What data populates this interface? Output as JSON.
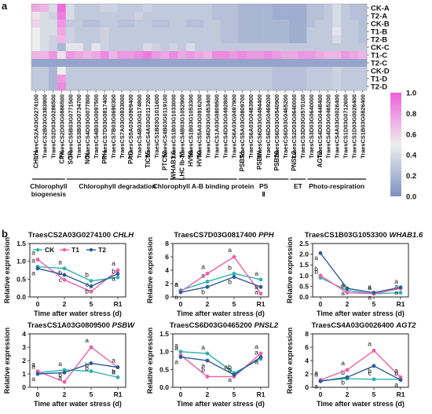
{
  "panel_labels": [
    "a",
    "b"
  ],
  "colors": {
    "low": "#7d92c2",
    "mid": "#eeeeee",
    "high": "#ee5fd8",
    "CK": "#2ab3b0",
    "T1": "#ee5fa8",
    "T2": "#2c5b94"
  },
  "chart_data": [
    {
      "type": "heatmap",
      "title": "",
      "rows": [
        "CK-A",
        "T2-A",
        "CK-B",
        "T1-B",
        "T2-B",
        "CK-C",
        "T1-C",
        "T2-C",
        "CK-D",
        "T1-D",
        "T2-D"
      ],
      "columns": [
        "TraesCS2A03G0274100",
        "TraesCS2B03G0383900",
        "TraesCS2D03G0286500",
        "TraesCS2D03G0886500",
        "TraesCS5B03G0771500",
        "TraesCS3B03G0734700",
        "TraesCS4D03G0077800",
        "TraesCS4B03G0097500",
        "TraesCS7D03G0817400",
        "TraesCS7B03G0690300",
        "TraesCS7A03G0833000",
        "TraesCS5A03G0909400",
        "TraesCS4B03G0174800",
        "TraesCS4A03G0117200",
        "TraesCS1B03G1011600",
        "TraesCS4B03G0119100",
        "TraesCS1B03G1033000",
        "TraesCS4B03G1052900",
        "TraesCS1B03G1053300",
        "TraesCS5A03G0916200",
        "TraesCS6D03G0453400",
        "TraesCS1A03G0809500",
        "TraesCS4D03G0492800",
        "TraesCS6A03G0497900",
        "TraesCS5A03G0809700",
        "TraesCS6A03G0483900",
        "TraesCS6D03G0494400",
        "TraesCS6D03G0469200",
        "TraesCS6D03G0540900",
        "TraesCS6D03G0465200",
        "TraesCS2D03G0640000",
        "TraesCS3D03G0570100",
        "TraesCS3D03G0640000",
        "TraesCS4D03G0448400",
        "TraesCS4D03G0465200",
        "TraesCS4A03G0026400",
        "TraesCS1D03G0712600",
        "TraesCS1D03G0026400",
        "TraesCS1B03G0826400"
      ],
      "values": [
        [
          0.75,
          0.7,
          0.4,
          0.95,
          0.4,
          0.3,
          0.3,
          0.3,
          0.35,
          0.35,
          0.3,
          0.3,
          0.3,
          0.35,
          0.3,
          0.3,
          0.3,
          0.3,
          0.3,
          0.3,
          0.3,
          0.25,
          0.25,
          0.25,
          0.2,
          0.2,
          0.2,
          0.2,
          0.15,
          0.15,
          0.15,
          0.15,
          0.25,
          0.25,
          0.3,
          0.4,
          0.3,
          0.25,
          0.25
        ],
        [
          0.55,
          0.4,
          0.35,
          0.9,
          0.4,
          0.3,
          0.3,
          0.3,
          0.3,
          0.3,
          0.3,
          0.3,
          0.35,
          0.3,
          0.3,
          0.3,
          0.3,
          0.3,
          0.3,
          0.3,
          0.3,
          0.25,
          0.25,
          0.25,
          0.2,
          0.2,
          0.2,
          0.2,
          0.15,
          0.15,
          0.15,
          0.15,
          0.25,
          0.25,
          0.3,
          0.4,
          0.3,
          0.25,
          0.25
        ],
        [
          0.6,
          0.4,
          0.4,
          0.8,
          0.3,
          0.3,
          0.25,
          0.25,
          0.3,
          0.3,
          0.25,
          0.25,
          0.3,
          0.3,
          0.25,
          0.25,
          0.3,
          0.3,
          0.25,
          0.25,
          0.3,
          0.3,
          0.25,
          0.25,
          0.2,
          0.2,
          0.2,
          0.2,
          0.2,
          0.2,
          0.15,
          0.15,
          0.25,
          0.3,
          0.3,
          0.4,
          0.3,
          0.3,
          0.25
        ],
        [
          0.5,
          0.4,
          0.4,
          0.75,
          0.35,
          0.3,
          0.3,
          0.3,
          0.35,
          0.3,
          0.3,
          0.3,
          0.3,
          0.3,
          0.3,
          0.3,
          0.3,
          0.3,
          0.3,
          0.3,
          0.3,
          0.3,
          0.25,
          0.25,
          0.2,
          0.2,
          0.2,
          0.2,
          0.2,
          0.2,
          0.15,
          0.15,
          0.3,
          0.3,
          0.3,
          0.45,
          0.3,
          0.3,
          0.25
        ],
        [
          0.5,
          0.4,
          0.35,
          0.7,
          0.35,
          0.3,
          0.3,
          0.3,
          0.35,
          0.3,
          0.3,
          0.3,
          0.3,
          0.3,
          0.3,
          0.3,
          0.3,
          0.3,
          0.3,
          0.3,
          0.3,
          0.3,
          0.25,
          0.25,
          0.2,
          0.2,
          0.2,
          0.2,
          0.2,
          0.2,
          0.15,
          0.15,
          0.3,
          0.3,
          0.3,
          0.4,
          0.3,
          0.3,
          0.25
        ],
        [
          0.5,
          0.4,
          0.35,
          0.2,
          0.45,
          0.45,
          0.3,
          0.45,
          0.35,
          0.3,
          0.3,
          0.3,
          0.3,
          0.4,
          0.35,
          0.3,
          0.35,
          0.3,
          0.4,
          0.3,
          0.3,
          0.3,
          0.3,
          0.3,
          0.3,
          0.3,
          0.3,
          0.3,
          0.3,
          0.3,
          0.3,
          0.3,
          0.3,
          0.3,
          0.3,
          0.3,
          0.3,
          0.3,
          0.3
        ],
        [
          0.7,
          0.7,
          0.8,
          0.55,
          0.8,
          0.75,
          0.7,
          0.75,
          0.85,
          0.7,
          0.8,
          0.8,
          0.85,
          0.9,
          0.8,
          0.75,
          0.85,
          0.75,
          0.8,
          0.75,
          0.7,
          0.85,
          0.85,
          0.8,
          0.85,
          0.8,
          0.8,
          0.85,
          0.8,
          0.75,
          0.75,
          0.8,
          0.8,
          0.75,
          0.7,
          0.7,
          0.8,
          0.75,
          0.7
        ],
        [
          0.1,
          0.1,
          0.1,
          0.1,
          0.1,
          0.1,
          0.1,
          0.1,
          0.1,
          0.1,
          0.1,
          0.1,
          0.1,
          0.1,
          0.1,
          0.1,
          0.1,
          0.1,
          0.1,
          0.1,
          0.1,
          0.1,
          0.1,
          0.1,
          0.1,
          0.1,
          0.1,
          0.1,
          0.1,
          0.1,
          0.1,
          0.1,
          0.1,
          0.1,
          0.1,
          0.1,
          0.1,
          0.1,
          0.1
        ],
        [
          0.3,
          0.3,
          0.2,
          0.5,
          0.3,
          0.3,
          0.3,
          0.3,
          0.3,
          0.3,
          0.3,
          0.3,
          0.3,
          0.3,
          0.3,
          0.3,
          0.3,
          0.3,
          0.3,
          0.3,
          0.3,
          0.3,
          0.3,
          0.3,
          0.3,
          0.3,
          0.3,
          0.3,
          0.25,
          0.25,
          0.25,
          0.25,
          0.3,
          0.3,
          0.3,
          0.35,
          0.3,
          0.3,
          0.3
        ],
        [
          0.3,
          0.3,
          0.2,
          0.8,
          0.3,
          0.3,
          0.3,
          0.3,
          0.3,
          0.3,
          0.3,
          0.3,
          0.3,
          0.3,
          0.3,
          0.3,
          0.3,
          0.3,
          0.3,
          0.3,
          0.3,
          0.3,
          0.3,
          0.3,
          0.3,
          0.3,
          0.3,
          0.3,
          0.25,
          0.25,
          0.25,
          0.25,
          0.3,
          0.3,
          0.3,
          0.35,
          0.3,
          0.3,
          0.3
        ],
        [
          0.3,
          0.3,
          0.2,
          0.85,
          0.3,
          0.3,
          0.3,
          0.3,
          0.3,
          0.3,
          0.3,
          0.3,
          0.3,
          0.3,
          0.3,
          0.3,
          0.3,
          0.3,
          0.3,
          0.3,
          0.3,
          0.3,
          0.3,
          0.3,
          0.3,
          0.3,
          0.3,
          0.3,
          0.25,
          0.25,
          0.25,
          0.25,
          0.3,
          0.3,
          0.3,
          0.35,
          0.3,
          0.3,
          0.3
        ]
      ],
      "column_labels_under": [
        {
          "text": "CHLH",
          "col": 0
        },
        {
          "text": "CPX",
          "col": 3
        },
        {
          "text": "SGR",
          "col": 4
        },
        {
          "text": "NOL",
          "col": 6
        },
        {
          "text": "PPH",
          "col": 8
        },
        {
          "text": "PAO",
          "col": 11
        },
        {
          "text": "TIC55",
          "col": 13
        },
        {
          "text": "PTC52",
          "col": 15
        },
        {
          "text": "WHAB1.6",
          "col": 16
        },
        {
          "text": "LHC Ib-21",
          "col": 17
        },
        {
          "text": "HV58",
          "col": 18
        },
        {
          "text": "HV90",
          "col": 19
        },
        {
          "text": "PSBS1",
          "col": 24
        },
        {
          "text": "PSBW",
          "col": 26
        },
        {
          "text": "PSB28",
          "col": 28
        },
        {
          "text": "PNSL2",
          "col": 30
        },
        {
          "text": "AGT2",
          "col": 33
        }
      ],
      "groups": [
        {
          "name": "Chlorophyll biogenesis",
          "from": 0,
          "to": 3
        },
        {
          "name": "Chlorophyll degradation",
          "from": 4,
          "to": 15
        },
        {
          "name": "Chlorophyll A-B binding protein",
          "from": 16,
          "to": 23
        },
        {
          "name": "PS Ⅱ",
          "from": 24,
          "to": 29
        },
        {
          "name": "ET",
          "from": 30,
          "to": 31
        },
        {
          "name": "Photo-respiration",
          "from": 32,
          "to": 38
        }
      ],
      "colorbar": {
        "min": 0.0,
        "max": 1.0,
        "ticks": [
          "1.0",
          "0.8",
          "0.6",
          "0.4",
          "0.2",
          "0.0"
        ]
      }
    },
    {
      "type": "line",
      "title_gene": "TraesCS2A03G0274100",
      "title_symbol": "CHLH",
      "x": [
        "0",
        "2",
        "5",
        "R1"
      ],
      "xlabel": "Time after water stress (d)",
      "ylabel": "Relative expression",
      "ylim": [
        0,
        1.5
      ],
      "yticks": [
        "0.0",
        "0.5",
        "1.0",
        "1.5"
      ],
      "legend": [
        "CK",
        "T1",
        "T2"
      ],
      "series": [
        {
          "name": "CK",
          "values": [
            0.85,
            0.8,
            0.45,
            0.55
          ],
          "letters": [
            "a",
            "a",
            "b",
            "b"
          ]
        },
        {
          "name": "T1",
          "values": [
            1.05,
            0.48,
            0.15,
            0.75
          ],
          "letters": [
            "a",
            "b",
            "c",
            "a"
          ]
        },
        {
          "name": "T2",
          "values": [
            0.8,
            0.62,
            0.3,
            0.65
          ],
          "letters": [
            "a",
            "c",
            "b",
            "a"
          ]
        }
      ]
    },
    {
      "type": "line",
      "title_gene": "TraesCS7D03G0817400",
      "title_symbol": "PPH",
      "x": [
        "0",
        "2",
        "5",
        "R1"
      ],
      "xlabel": "Time after water stress (d)",
      "ylabel": "Relative expression",
      "ylim": [
        0,
        8
      ],
      "yticks": [
        "0",
        "2",
        "4",
        "6",
        "8"
      ],
      "series": [
        {
          "name": "CK",
          "values": [
            1.0,
            2.3,
            3.5,
            2.6
          ],
          "letters": [
            "a",
            "a",
            "b",
            "a"
          ]
        },
        {
          "name": "T1",
          "values": [
            0.8,
            3.5,
            6.0,
            0.5
          ],
          "letters": [
            "a",
            "a",
            "a",
            "a"
          ]
        },
        {
          "name": "T2",
          "values": [
            0.7,
            1.5,
            3.0,
            1.5
          ],
          "letters": [
            "a",
            "b",
            "b",
            "a"
          ]
        }
      ]
    },
    {
      "type": "line",
      "title_gene": "TraesCS1B03G1053300",
      "title_symbol": "WHAB1.6",
      "x": [
        "0",
        "2",
        "5",
        "R1"
      ],
      "xlabel": "Time after water stress (d)",
      "ylabel": "Relative expression",
      "ylim": [
        0,
        2.5
      ],
      "yticks": [
        "0.0",
        "0.5",
        "1.0",
        "1.5",
        "2.0",
        "2.5"
      ],
      "series": [
        {
          "name": "CK",
          "values": [
            0.9,
            0.3,
            0.15,
            0.2
          ],
          "letters": [
            "b",
            "a",
            "a",
            "a"
          ]
        },
        {
          "name": "T1",
          "values": [
            1.0,
            0.2,
            0.15,
            0.4
          ],
          "letters": [
            "b",
            "a",
            "a",
            "a"
          ]
        },
        {
          "name": "T2",
          "values": [
            2.05,
            0.4,
            0.2,
            0.45
          ],
          "letters": [
            "a",
            "a",
            "a",
            "a"
          ]
        }
      ]
    },
    {
      "type": "line",
      "title_gene": "TraesCS1A03G0809500",
      "title_symbol": "PSBW",
      "x": [
        "0",
        "2",
        "5",
        "R1"
      ],
      "xlabel": "Time after water stress (d)",
      "ylabel": "Relative expression",
      "ylim": [
        0,
        4
      ],
      "yticks": [
        "0",
        "1",
        "2",
        "3",
        "4"
      ],
      "series": [
        {
          "name": "CK",
          "values": [
            1.1,
            1.3,
            1.2,
            0.75
          ],
          "letters": [
            "a",
            "a",
            "b",
            "b"
          ]
        },
        {
          "name": "T1",
          "values": [
            1.2,
            0.4,
            3.0,
            1.5
          ],
          "letters": [
            "a",
            "b",
            "a",
            "a"
          ]
        },
        {
          "name": "T2",
          "values": [
            1.0,
            1.1,
            1.8,
            1.5
          ],
          "letters": [
            "a",
            "a",
            "b",
            "a"
          ]
        }
      ]
    },
    {
      "type": "line",
      "title_gene": "TraesCS6D03G0465200",
      "title_symbol": "PNSL2",
      "x": [
        "0",
        "2",
        "5",
        "R1"
      ],
      "xlabel": "Time after water stress (d)",
      "ylabel": "Relative expression",
      "ylim": [
        0,
        1.5
      ],
      "yticks": [
        "0.0",
        "0.5",
        "1.0",
        "1.5"
      ],
      "series": [
        {
          "name": "CK",
          "values": [
            1.0,
            0.95,
            0.4,
            0.8
          ],
          "letters": [
            "a",
            "a",
            "ab",
            "a"
          ]
        },
        {
          "name": "T1",
          "values": [
            0.9,
            0.3,
            0.3,
            0.95
          ],
          "letters": [
            "a",
            "b",
            "b",
            "a"
          ]
        },
        {
          "name": "T2",
          "values": [
            0.85,
            0.75,
            0.35,
            0.85
          ],
          "letters": [
            "a",
            "a",
            "a",
            "a"
          ]
        }
      ]
    },
    {
      "type": "line",
      "title_gene": "TraesCS4A03G0026400",
      "title_symbol": "AGT2",
      "x": [
        "0",
        "2",
        "5",
        "R1"
      ],
      "xlabel": "Time after water stress (d)",
      "ylabel": "Relative expression",
      "ylim": [
        0,
        8
      ],
      "yticks": [
        "0",
        "2",
        "4",
        "6",
        "8"
      ],
      "series": [
        {
          "name": "CK",
          "values": [
            1.0,
            1.3,
            1.2,
            1.2
          ],
          "letters": [
            "a",
            "b",
            "c",
            "b"
          ]
        },
        {
          "name": "T1",
          "values": [
            1.1,
            2.6,
            5.5,
            1.5
          ],
          "letters": [
            "a",
            "a",
            "a",
            "a"
          ]
        },
        {
          "name": "T2",
          "values": [
            0.9,
            1.5,
            3.2,
            1.1
          ],
          "letters": [
            "a",
            "b",
            "b",
            "a"
          ]
        }
      ]
    }
  ]
}
